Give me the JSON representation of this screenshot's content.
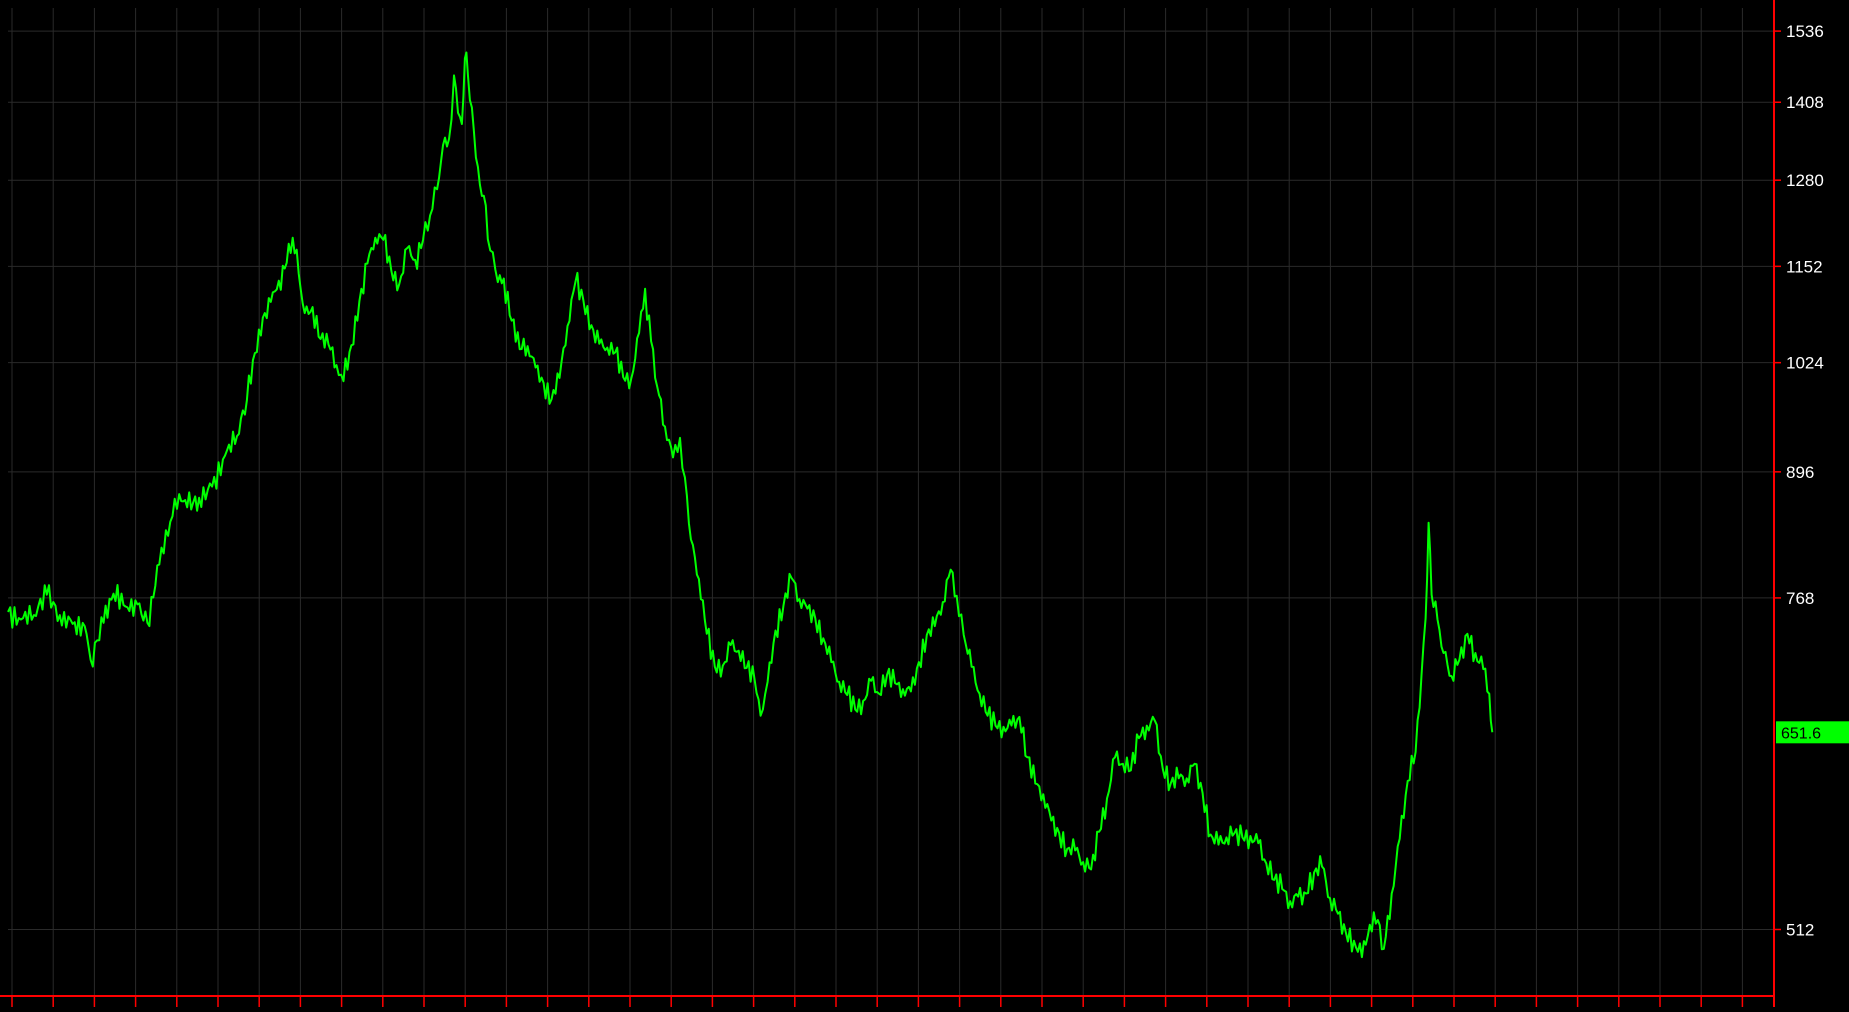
{
  "colors": {
    "background": "#000000",
    "grid": "#2a2a2a",
    "axis": "#ff0000",
    "series": "#00ff00",
    "tick_label": "#ffffff",
    "last_price_box": "#00ff00",
    "last_price_text": "#000000"
  },
  "chart_data": {
    "type": "line",
    "title": "",
    "xlabel": "",
    "ylabel": "",
    "grid": true,
    "legend": "none",
    "y_scale": "log2",
    "ylim": [
      472,
      1580
    ],
    "y_ticks": [
      512,
      768,
      896,
      1024,
      1152,
      1280,
      1408,
      1536
    ],
    "y_tick_labels": [
      "512",
      "768",
      "896",
      "1024",
      "1152",
      "1280",
      "1408",
      "1536"
    ],
    "last_value_label": "651.6",
    "series": [
      {
        "points": [
          [
            0,
            755
          ],
          [
            13,
            748
          ],
          [
            26,
            752
          ],
          [
            39,
            771
          ],
          [
            52,
            752
          ],
          [
            65,
            744
          ],
          [
            77,
            742
          ],
          [
            83,
            712
          ],
          [
            96,
            745
          ],
          [
            106,
            772
          ],
          [
            118,
            760
          ],
          [
            130,
            762
          ],
          [
            140,
            745
          ],
          [
            152,
            800
          ],
          [
            163,
            843
          ],
          [
            172,
            872
          ],
          [
            180,
            858
          ],
          [
            192,
            868
          ],
          [
            205,
            880
          ],
          [
            218,
            914
          ],
          [
            230,
            936
          ],
          [
            240,
            978
          ],
          [
            248,
            1036
          ],
          [
            256,
            1082
          ],
          [
            264,
            1103
          ],
          [
            272,
            1132
          ],
          [
            280,
            1157
          ],
          [
            286,
            1193
          ],
          [
            292,
            1142
          ],
          [
            298,
            1088
          ],
          [
            306,
            1096
          ],
          [
            314,
            1054
          ],
          [
            322,
            1047
          ],
          [
            330,
            1021
          ],
          [
            337,
            1001
          ],
          [
            345,
            1046
          ],
          [
            353,
            1104
          ],
          [
            361,
            1156
          ],
          [
            369,
            1193
          ],
          [
            377,
            1190
          ],
          [
            385,
            1146
          ],
          [
            393,
            1127
          ],
          [
            401,
            1178
          ],
          [
            409,
            1161
          ],
          [
            417,
            1190
          ],
          [
            424,
            1226
          ],
          [
            431,
            1266
          ],
          [
            437,
            1336
          ],
          [
            443,
            1346
          ],
          [
            448,
            1455
          ],
          [
            452,
            1390
          ],
          [
            456,
            1371
          ],
          [
            459,
            1486
          ],
          [
            462,
            1456
          ],
          [
            466,
            1399
          ],
          [
            470,
            1316
          ],
          [
            474,
            1273
          ],
          [
            478,
            1256
          ],
          [
            482,
            1191
          ],
          [
            487,
            1172
          ],
          [
            492,
            1130
          ],
          [
            498,
            1135
          ],
          [
            506,
            1078
          ],
          [
            514,
            1041
          ],
          [
            522,
            1045
          ],
          [
            530,
            1018
          ],
          [
            538,
            999
          ],
          [
            546,
            979
          ],
          [
            554,
            1005
          ],
          [
            562,
            1071
          ],
          [
            570,
            1130
          ],
          [
            578,
            1105
          ],
          [
            586,
            1072
          ],
          [
            594,
            1048
          ],
          [
            602,
            1043
          ],
          [
            610,
            1037
          ],
          [
            618,
            1006
          ],
          [
            626,
            1004
          ],
          [
            634,
            1062
          ],
          [
            640,
            1121
          ],
          [
            646,
            1051
          ],
          [
            652,
            995
          ],
          [
            660,
            947
          ],
          [
            668,
            912
          ],
          [
            675,
            934
          ],
          [
            680,
            890
          ],
          [
            686,
            825
          ],
          [
            694,
            786
          ],
          [
            702,
            735
          ],
          [
            710,
            706
          ],
          [
            718,
            707
          ],
          [
            726,
            725
          ],
          [
            734,
            720
          ],
          [
            742,
            705
          ],
          [
            750,
            695
          ],
          [
            756,
            665
          ],
          [
            763,
            693
          ],
          [
            771,
            738
          ],
          [
            779,
            761
          ],
          [
            787,
            787
          ],
          [
            795,
            767
          ],
          [
            803,
            758
          ],
          [
            811,
            749
          ],
          [
            819,
            731
          ],
          [
            827,
            710
          ],
          [
            835,
            693
          ],
          [
            843,
            682
          ],
          [
            851,
            670
          ],
          [
            859,
            677
          ],
          [
            867,
            694
          ],
          [
            875,
            683
          ],
          [
            883,
            699
          ],
          [
            891,
            692
          ],
          [
            899,
            687
          ],
          [
            907,
            685
          ],
          [
            915,
            710
          ],
          [
            923,
            734
          ],
          [
            931,
            742
          ],
          [
            939,
            764
          ],
          [
            947,
            795
          ],
          [
            953,
            770
          ],
          [
            960,
            734
          ],
          [
            968,
            706
          ],
          [
            976,
            683
          ],
          [
            984,
            665
          ],
          [
            992,
            657
          ],
          [
            1000,
            656
          ],
          [
            1008,
            657
          ],
          [
            1016,
            664
          ],
          [
            1024,
            632
          ],
          [
            1032,
            612
          ],
          [
            1040,
            604
          ],
          [
            1048,
            585
          ],
          [
            1056,
            576
          ],
          [
            1064,
            565
          ],
          [
            1072,
            564
          ],
          [
            1080,
            556
          ],
          [
            1088,
            551
          ],
          [
            1096,
            577
          ],
          [
            1104,
            601
          ],
          [
            1112,
            632
          ],
          [
            1120,
            627
          ],
          [
            1128,
            622
          ],
          [
            1136,
            647
          ],
          [
            1144,
            657
          ],
          [
            1152,
            661
          ],
          [
            1160,
            623
          ],
          [
            1168,
            612
          ],
          [
            1176,
            616
          ],
          [
            1184,
            616
          ],
          [
            1192,
            627
          ],
          [
            1200,
            605
          ],
          [
            1208,
            575
          ],
          [
            1216,
            568
          ],
          [
            1224,
            573
          ],
          [
            1232,
            576
          ],
          [
            1240,
            573
          ],
          [
            1248,
            574
          ],
          [
            1256,
            569
          ],
          [
            1264,
            555
          ],
          [
            1272,
            544
          ],
          [
            1280,
            538
          ],
          [
            1288,
            530
          ],
          [
            1296,
            533
          ],
          [
            1304,
            535
          ],
          [
            1312,
            549
          ],
          [
            1320,
            553
          ],
          [
            1328,
            532
          ],
          [
            1336,
            522
          ],
          [
            1344,
            510
          ],
          [
            1352,
            505
          ],
          [
            1360,
            495
          ],
          [
            1368,
            515
          ],
          [
            1376,
            518
          ],
          [
            1382,
            500
          ],
          [
            1390,
            535
          ],
          [
            1398,
            572
          ],
          [
            1406,
            614
          ],
          [
            1414,
            636
          ],
          [
            1420,
            700
          ],
          [
            1424,
            749
          ],
          [
            1427,
            842
          ],
          [
            1430,
            771
          ],
          [
            1436,
            748
          ],
          [
            1442,
            718
          ],
          [
            1450,
            698
          ],
          [
            1458,
            712
          ],
          [
            1466,
            735
          ],
          [
            1474,
            718
          ],
          [
            1482,
            704
          ],
          [
            1488,
            683
          ],
          [
            1491,
            651.6
          ]
        ]
      }
    ]
  }
}
